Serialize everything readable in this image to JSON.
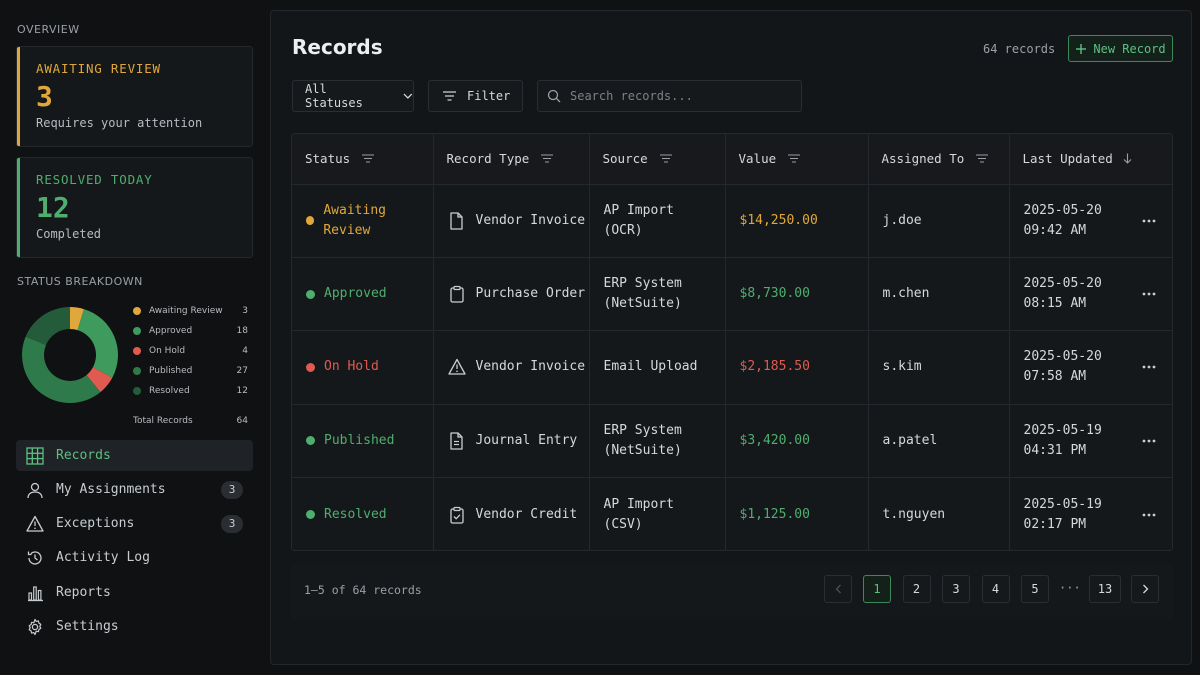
{
  "sidebar": {
    "overview_label": "OVERVIEW",
    "cards": [
      {
        "title": "AWAITING REVIEW",
        "value": "3",
        "subtitle": "Requires your attention",
        "color": "#e0a83a"
      },
      {
        "title": "RESOLVED TODAY",
        "value": "12",
        "subtitle": "Completed",
        "color": "#4fae6e"
      }
    ],
    "breakdown_label": "STATUS BREAKDOWN",
    "breakdown": [
      {
        "label": "Awaiting Review",
        "value": 3,
        "color": "#e0a83a"
      },
      {
        "label": "Approved",
        "value": 18,
        "color": "#3f9a5e"
      },
      {
        "label": "On Hold",
        "value": 4,
        "color": "#e05a4f"
      },
      {
        "label": "Published",
        "value": 27,
        "color": "#2f7a4b"
      },
      {
        "label": "Resolved",
        "value": 12,
        "color": "#245c3b"
      }
    ],
    "total_label": "Total Records",
    "total_value": "64",
    "nav": [
      {
        "label": "Records",
        "icon": "grid-icon",
        "active": true,
        "badge": ""
      },
      {
        "label": "My Assignments",
        "icon": "user-icon",
        "active": false,
        "badge": "3"
      },
      {
        "label": "Exceptions",
        "icon": "warning-icon",
        "active": false,
        "badge": "3"
      },
      {
        "label": "Activity Log",
        "icon": "history-icon",
        "active": false,
        "badge": ""
      },
      {
        "label": "Reports",
        "icon": "bar-chart-icon",
        "active": false,
        "badge": ""
      },
      {
        "label": "Settings",
        "icon": "gear-icon",
        "active": false,
        "badge": ""
      }
    ]
  },
  "main": {
    "title": "Records",
    "record_count": "64 records",
    "new_button": "New Record",
    "status_select": "All Statuses",
    "filter_button": "Filter",
    "search_placeholder": "Search records...",
    "columns": [
      "Status",
      "Record Type",
      "Source",
      "Value",
      "Assigned To",
      "Last Updated"
    ],
    "rows": [
      {
        "status": "Awaiting Review",
        "status_color": "#e0a83a",
        "type": "Vendor Invoice",
        "type_icon": "document-icon",
        "source_1": "AP Import",
        "source_2": "(OCR)",
        "value": "$14,250.00",
        "assigned": "j.doe",
        "date": "2025-05-20",
        "time": "09:42 AM"
      },
      {
        "status": "Approved",
        "status_color": "#4fae6e",
        "type": "Purchase Order",
        "type_icon": "clipboard-icon",
        "source_1": "ERP System",
        "source_2": "(NetSuite)",
        "value": "$8,730.00",
        "assigned": "m.chen",
        "date": "2025-05-20",
        "time": "08:15 AM"
      },
      {
        "status": "On Hold",
        "status_color": "#e05a4f",
        "type": "Vendor Invoice",
        "type_icon": "warning-icon",
        "source_1": "Email Upload",
        "source_2": "",
        "value": "$2,185.50",
        "assigned": "s.kim",
        "date": "2025-05-20",
        "time": "07:58 AM"
      },
      {
        "status": "Published",
        "status_color": "#4fae6e",
        "type": "Journal Entry",
        "type_icon": "file-text-icon",
        "source_1": "ERP System",
        "source_2": "(NetSuite)",
        "value": "$3,420.00",
        "assigned": "a.patel",
        "date": "2025-05-19",
        "time": "04:31 PM"
      },
      {
        "status": "Resolved",
        "status_color": "#4fae6e",
        "type": "Vendor Credit",
        "type_icon": "clipboard-check-icon",
        "source_1": "AP Import",
        "source_2": "(CSV)",
        "value": "$1,125.00",
        "assigned": "t.nguyen",
        "date": "2025-05-19",
        "time": "02:17 PM"
      }
    ],
    "pagination": {
      "range": "1–5 of 64 records",
      "pages": [
        "1",
        "2",
        "3",
        "4",
        "5"
      ],
      "ellipsis": "···",
      "last": "13",
      "current": "1"
    }
  }
}
